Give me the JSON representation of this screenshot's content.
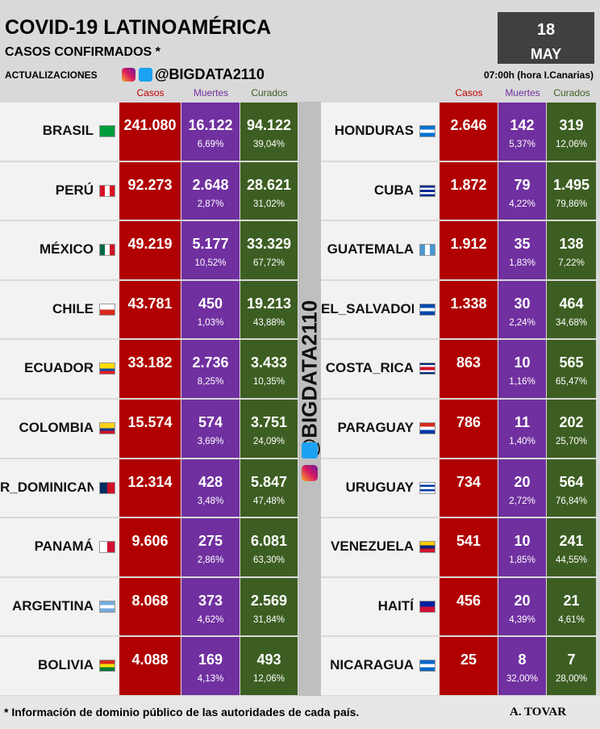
{
  "header": {
    "title": "COVID-19 LATINOAMÉRICA",
    "subtitle": "CASOS CONFIRMADOS *",
    "updates": "ACTUALIZACIONES",
    "handle": "@BIGDATA2110",
    "day": "18",
    "month": "MAY",
    "time": "07:00h (hora I.Canarias)"
  },
  "columns": [
    "Casos",
    "Muertes",
    "Curados"
  ],
  "left": [
    {
      "country": "BRASIL",
      "cases": "241.080",
      "deaths": "16.122",
      "deaths_pct": "6,69%",
      "recovered": "94.122",
      "recovered_pct": "39,04%"
    },
    {
      "country": "PERÚ",
      "cases": "92.273",
      "deaths": "2.648",
      "deaths_pct": "2,87%",
      "recovered": "28.621",
      "recovered_pct": "31,02%"
    },
    {
      "country": "MÉXICO",
      "cases": "49.219",
      "deaths": "5.177",
      "deaths_pct": "10,52%",
      "recovered": "33.329",
      "recovered_pct": "67,72%"
    },
    {
      "country": "CHILE",
      "cases": "43.781",
      "deaths": "450",
      "deaths_pct": "1,03%",
      "recovered": "19.213",
      "recovered_pct": "43,88%"
    },
    {
      "country": "ECUADOR",
      "cases": "33.182",
      "deaths": "2.736",
      "deaths_pct": "8,25%",
      "recovered": "3.433",
      "recovered_pct": "10,35%"
    },
    {
      "country": "COLOMBIA",
      "cases": "15.574",
      "deaths": "574",
      "deaths_pct": "3,69%",
      "recovered": "3.751",
      "recovered_pct": "24,09%"
    },
    {
      "country": "R_DOMINICANA",
      "cases": "12.314",
      "deaths": "428",
      "deaths_pct": "3,48%",
      "recovered": "5.847",
      "recovered_pct": "47,48%"
    },
    {
      "country": "PANAMÁ",
      "cases": "9.606",
      "deaths": "275",
      "deaths_pct": "2,86%",
      "recovered": "6.081",
      "recovered_pct": "63,30%"
    },
    {
      "country": "ARGENTINA",
      "cases": "8.068",
      "deaths": "373",
      "deaths_pct": "4,62%",
      "recovered": "2.569",
      "recovered_pct": "31,84%"
    },
    {
      "country": "BOLIVIA",
      "cases": "4.088",
      "deaths": "169",
      "deaths_pct": "4,13%",
      "recovered": "493",
      "recovered_pct": "12,06%"
    }
  ],
  "right": [
    {
      "country": "HONDURAS",
      "cases": "2.646",
      "deaths": "142",
      "deaths_pct": "5,37%",
      "recovered": "319",
      "recovered_pct": "12,06%"
    },
    {
      "country": "CUBA",
      "cases": "1.872",
      "deaths": "79",
      "deaths_pct": "4,22%",
      "recovered": "1.495",
      "recovered_pct": "79,86%"
    },
    {
      "country": "GUATEMALA",
      "cases": "1.912",
      "deaths": "35",
      "deaths_pct": "1,83%",
      "recovered": "138",
      "recovered_pct": "7,22%"
    },
    {
      "country": "EL_SALVADOR",
      "cases": "1.338",
      "deaths": "30",
      "deaths_pct": "2,24%",
      "recovered": "464",
      "recovered_pct": "34,68%"
    },
    {
      "country": "COSTA_RICA",
      "cases": "863",
      "deaths": "10",
      "deaths_pct": "1,16%",
      "recovered": "565",
      "recovered_pct": "65,47%"
    },
    {
      "country": "PARAGUAY",
      "cases": "786",
      "deaths": "11",
      "deaths_pct": "1,40%",
      "recovered": "202",
      "recovered_pct": "25,70%"
    },
    {
      "country": "URUGUAY",
      "cases": "734",
      "deaths": "20",
      "deaths_pct": "2,72%",
      "recovered": "564",
      "recovered_pct": "76,84%"
    },
    {
      "country": "VENEZUELA",
      "cases": "541",
      "deaths": "10",
      "deaths_pct": "1,85%",
      "recovered": "241",
      "recovered_pct": "44,55%"
    },
    {
      "country": "HAITÍ",
      "cases": "456",
      "deaths": "20",
      "deaths_pct": "4,39%",
      "recovered": "21",
      "recovered_pct": "4,61%"
    },
    {
      "country": "NICARAGUA",
      "cases": "25",
      "deaths": "8",
      "deaths_pct": "32,00%",
      "recovered": "7",
      "recovered_pct": "28,00%"
    }
  ],
  "footer": {
    "note": "* Información de dominio público de las autoridades de cada país.",
    "author": "A. TOVAR"
  }
}
